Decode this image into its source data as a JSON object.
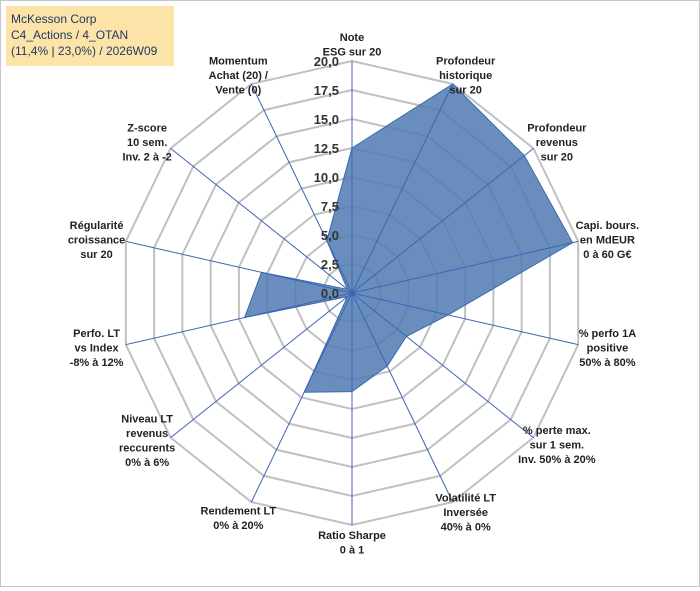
{
  "title_box": {
    "line1": "McKesson Corp",
    "line2": "C4_Actions / 4_OTAN",
    "line3": "(11,4% | 23,0%) / 2026W09"
  },
  "colors": {
    "fill": "#4f7ab3",
    "stroke": "#3b6aa8",
    "grid": "#c0c0c0",
    "spoke": "#3c64b4",
    "title_bg": "#fce4a8",
    "title_text": "#1f3864"
  },
  "chart_data": {
    "type": "radar",
    "title": "McKesson Corp",
    "rmin": 0,
    "rmax": 20,
    "tick_values": [
      0,
      2.5,
      5,
      7.5,
      10,
      12.5,
      15,
      17.5,
      20
    ],
    "tick_labels": [
      "0,0",
      "2,5",
      "5,0",
      "7,5",
      "10,0",
      "12,5",
      "15,0",
      "17,5",
      "20,0"
    ],
    "axes": [
      {
        "label": [
          "Note",
          "ESG sur 20"
        ],
        "value": 12.5
      },
      {
        "label": [
          "Profondeur",
          "historique",
          "sur 20"
        ],
        "value": 20
      },
      {
        "label": [
          "Profondeur",
          "revenus",
          "sur 20"
        ],
        "value": 19
      },
      {
        "label": [
          "Capi. bours.",
          "en MdEUR",
          "0 à 60 G€"
        ],
        "value": 19.5
      },
      {
        "label": [
          "% perfo 1A",
          "positive",
          "50% à 80%"
        ],
        "value": 8.5
      },
      {
        "label": [
          "% perte max.",
          "sur 1 sem.",
          "Inv. 50% à 20%"
        ],
        "value": 6
      },
      {
        "label": [
          "Volatilité LT",
          "Inversée",
          "40% à 0%"
        ],
        "value": 7
      },
      {
        "label": [
          "Ratio Sharpe",
          "0 à 1"
        ],
        "value": 8.5
      },
      {
        "label": [
          "Rendement LT",
          "0% à 20%"
        ],
        "value": 9.5
      },
      {
        "label": [
          "Niveau LT",
          "revenus",
          "reccurents",
          "0% à 6%"
        ],
        "value": 0.5
      },
      {
        "label": [
          "Perfo. LT",
          "vs Index",
          "-8% à 12%"
        ],
        "value": 9.5
      },
      {
        "label": [
          "Régularité",
          "croissance",
          "sur 20"
        ],
        "value": 8
      },
      {
        "label": [
          "Z-score",
          "10 sem.",
          "Inv. 2 à -2"
        ],
        "value": 0.5
      },
      {
        "label": [
          "Momentum",
          "Achat (20) /",
          "Vente (0)"
        ],
        "value": 5
      }
    ]
  }
}
